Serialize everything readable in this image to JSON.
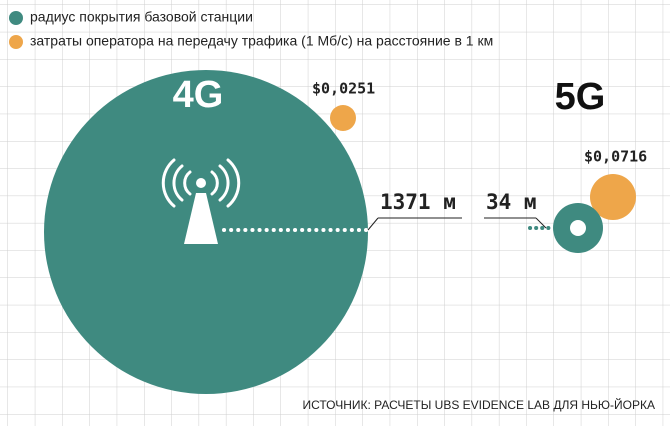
{
  "legend": {
    "coverage": "радиус покрытия базовой станции",
    "cost": "затраты оператора на передачу трафика (1 Мб/с) на расстояние в 1 км"
  },
  "g4": {
    "label": "4G",
    "radius": "1371 м",
    "cost": "$0,0251"
  },
  "g5": {
    "label": "5G",
    "radius": "34 м",
    "cost": "$0,0716"
  },
  "source": "ИСТОЧНИК: РАСЧЕТЫ UBS EVIDENCE LAB ДЛЯ НЬЮ-ЙОРКА"
}
